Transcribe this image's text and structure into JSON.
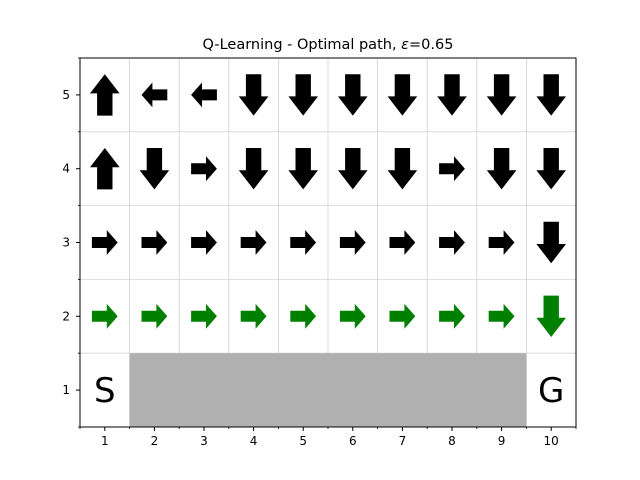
{
  "chart_data": {
    "type": "heatmap",
    "title": "Q-Learning - Optimal path, ε=0.65",
    "title_prefix": "Q-Learning - Optimal path, ",
    "title_var": "ε",
    "title_suffix": "=0.65",
    "xlabel": "",
    "ylabel": "",
    "x_ticks": [
      "1",
      "2",
      "3",
      "4",
      "5",
      "6",
      "7",
      "8",
      "9",
      "10"
    ],
    "y_ticks": [
      "1",
      "2",
      "3",
      "4",
      "5"
    ],
    "xlim": [
      0.5,
      10.5
    ],
    "ylim": [
      0.5,
      5.5
    ],
    "grid": true,
    "colors": {
      "default_arrow": "#000000",
      "path_arrow": "#008000",
      "cliff": "#b0b0b0",
      "grid": "#d3d3d3"
    },
    "cliff": {
      "x_from": 2,
      "x_to": 9,
      "y": 1
    },
    "labels": [
      {
        "x": 1,
        "y": 1,
        "text": "S"
      },
      {
        "x": 10,
        "y": 1,
        "text": "G"
      }
    ],
    "arrows": [
      {
        "y": 5,
        "dirs": [
          "up",
          "left",
          "left",
          "down",
          "down",
          "down",
          "down",
          "down",
          "down",
          "down"
        ],
        "path": []
      },
      {
        "y": 4,
        "dirs": [
          "up",
          "down",
          "right",
          "down",
          "down",
          "down",
          "down",
          "right",
          "down",
          "down"
        ],
        "path": []
      },
      {
        "y": 3,
        "dirs": [
          "right",
          "right",
          "right",
          "right",
          "right",
          "right",
          "right",
          "right",
          "right",
          "down"
        ],
        "path": []
      },
      {
        "y": 2,
        "dirs": [
          "right",
          "right",
          "right",
          "right",
          "right",
          "right",
          "right",
          "right",
          "right",
          "down"
        ],
        "path": [
          1,
          2,
          3,
          4,
          5,
          6,
          7,
          8,
          9,
          10
        ]
      }
    ]
  }
}
